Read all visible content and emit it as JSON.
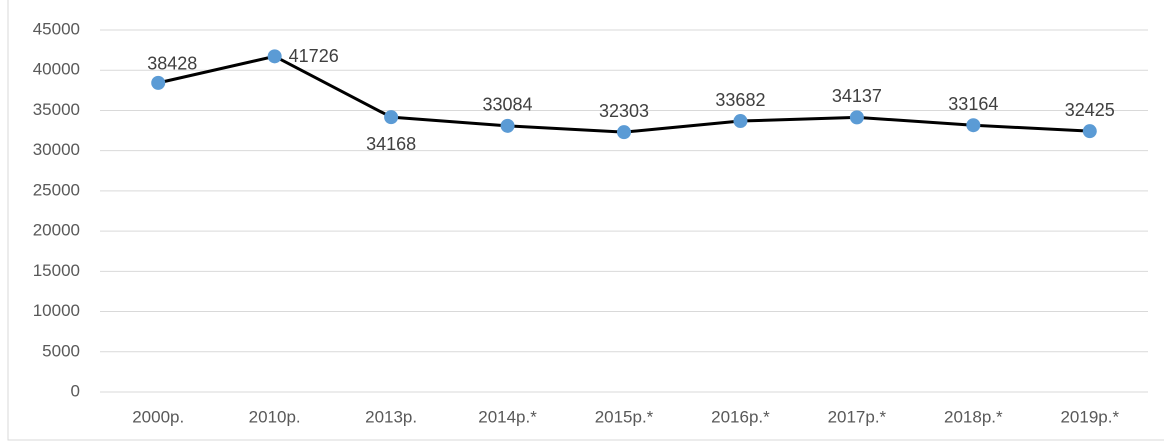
{
  "chart_data": {
    "type": "line",
    "categories": [
      "2000р.",
      "2010р.",
      "2013р.",
      "2014р.*",
      "2015р.*",
      "2016р.*",
      "2017р.*",
      "2018р.*",
      "2019р.*"
    ],
    "series": [
      {
        "color": "#000000",
        "marker_color": "#5b9bd5",
        "values": [
          38428,
          41726,
          34168,
          33084,
          32303,
          33682,
          34137,
          33164,
          32425
        ]
      }
    ],
    "ylim": [
      0,
      45000
    ],
    "yticks": [
      0,
      5000,
      10000,
      15000,
      20000,
      25000,
      30000,
      35000,
      40000,
      45000
    ],
    "grid": true
  }
}
